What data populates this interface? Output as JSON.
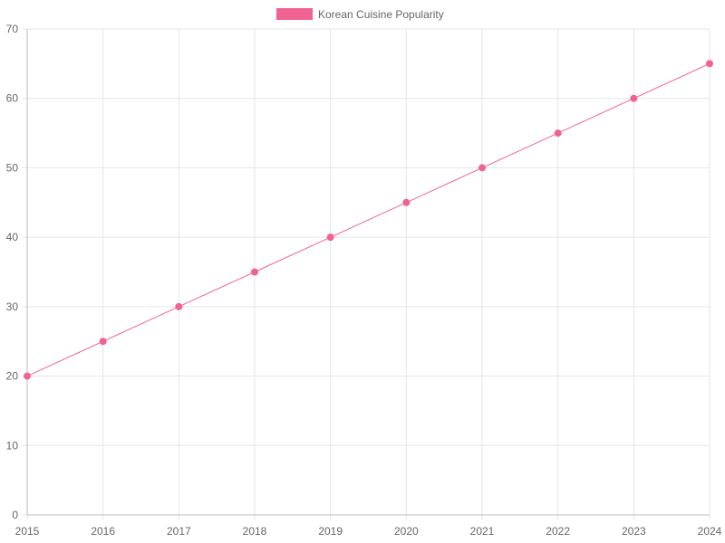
{
  "chart_data": {
    "type": "line",
    "categories": [
      "2015",
      "2016",
      "2017",
      "2018",
      "2019",
      "2020",
      "2021",
      "2022",
      "2023",
      "2024"
    ],
    "series": [
      {
        "name": "Korean Cuisine Popularity",
        "values": [
          20,
          25,
          30,
          35,
          40,
          45,
          50,
          55,
          60,
          65
        ],
        "color": "#f06292"
      }
    ],
    "ylim": [
      0,
      70
    ],
    "yticks": [
      0,
      10,
      20,
      30,
      40,
      50,
      60,
      70
    ],
    "grid": true,
    "legend_position": "top"
  }
}
